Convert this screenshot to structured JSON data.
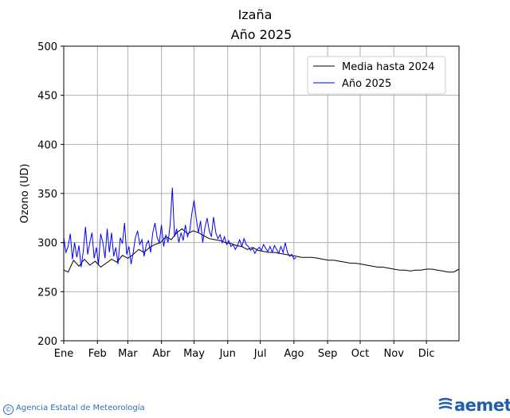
{
  "chart_data": {
    "type": "line",
    "title": "Izaña",
    "subtitle": "Año 2025",
    "ylabel": "Ozono (UD)",
    "xlabel": "",
    "ylim": [
      200,
      500
    ],
    "yticks": [
      200,
      250,
      300,
      350,
      400,
      450,
      500
    ],
    "xticks": [
      {
        "label": "Ene",
        "day": 1
      },
      {
        "label": "Feb",
        "day": 32
      },
      {
        "label": "Mar",
        "day": 60
      },
      {
        "label": "Abr",
        "day": 91
      },
      {
        "label": "May",
        "day": 121
      },
      {
        "label": "Jun",
        "day": 152
      },
      {
        "label": "Jul",
        "day": 182
      },
      {
        "label": "Ago",
        "day": 213
      },
      {
        "label": "Sep",
        "day": 244
      },
      {
        "label": "Oct",
        "day": 274
      },
      {
        "label": "Nov",
        "day": 305
      },
      {
        "label": "Dic",
        "day": 335
      }
    ],
    "xlim": [
      1,
      365
    ],
    "grid": true,
    "legend_position": "top-right",
    "series": [
      {
        "name": "Media hasta 2024",
        "color": "#000000",
        "points": [
          [
            1,
            272
          ],
          [
            5,
            270
          ],
          [
            10,
            282
          ],
          [
            15,
            276
          ],
          [
            20,
            283
          ],
          [
            25,
            277
          ],
          [
            30,
            281
          ],
          [
            35,
            275
          ],
          [
            40,
            279
          ],
          [
            45,
            283
          ],
          [
            50,
            280
          ],
          [
            55,
            287
          ],
          [
            60,
            284
          ],
          [
            65,
            288
          ],
          [
            70,
            293
          ],
          [
            75,
            290
          ],
          [
            80,
            295
          ],
          [
            85,
            298
          ],
          [
            90,
            300
          ],
          [
            95,
            306
          ],
          [
            100,
            303
          ],
          [
            105,
            310
          ],
          [
            110,
            314
          ],
          [
            115,
            309
          ],
          [
            120,
            312
          ],
          [
            125,
            310
          ],
          [
            130,
            307
          ],
          [
            135,
            304
          ],
          [
            140,
            303
          ],
          [
            145,
            302
          ],
          [
            150,
            300
          ],
          [
            155,
            299
          ],
          [
            160,
            297
          ],
          [
            165,
            296
          ],
          [
            170,
            293
          ],
          [
            175,
            295
          ],
          [
            180,
            292
          ],
          [
            185,
            291
          ],
          [
            190,
            290
          ],
          [
            195,
            290
          ],
          [
            200,
            289
          ],
          [
            205,
            288
          ],
          [
            210,
            287
          ],
          [
            215,
            286
          ],
          [
            220,
            285
          ],
          [
            225,
            285
          ],
          [
            230,
            285
          ],
          [
            235,
            284
          ],
          [
            240,
            283
          ],
          [
            245,
            282
          ],
          [
            250,
            282
          ],
          [
            255,
            281
          ],
          [
            260,
            280
          ],
          [
            265,
            279
          ],
          [
            270,
            279
          ],
          [
            275,
            278
          ],
          [
            280,
            277
          ],
          [
            285,
            276
          ],
          [
            290,
            275
          ],
          [
            295,
            275
          ],
          [
            300,
            274
          ],
          [
            305,
            273
          ],
          [
            310,
            272
          ],
          [
            315,
            272
          ],
          [
            320,
            271
          ],
          [
            325,
            272
          ],
          [
            330,
            272
          ],
          [
            335,
            273
          ],
          [
            340,
            273
          ],
          [
            345,
            272
          ],
          [
            350,
            271
          ],
          [
            355,
            270
          ],
          [
            360,
            270
          ],
          [
            365,
            273
          ]
        ]
      },
      {
        "name": "Año 2025",
        "color": "#0000ff",
        "points": [
          [
            1,
            305
          ],
          [
            3,
            290
          ],
          [
            5,
            296
          ],
          [
            7,
            309
          ],
          [
            9,
            283
          ],
          [
            11,
            300
          ],
          [
            13,
            285
          ],
          [
            15,
            297
          ],
          [
            17,
            275
          ],
          [
            19,
            291
          ],
          [
            21,
            316
          ],
          [
            23,
            288
          ],
          [
            25,
            300
          ],
          [
            27,
            310
          ],
          [
            29,
            284
          ],
          [
            31,
            295
          ],
          [
            33,
            278
          ],
          [
            35,
            309
          ],
          [
            37,
            300
          ],
          [
            39,
            284
          ],
          [
            41,
            314
          ],
          [
            43,
            290
          ],
          [
            45,
            310
          ],
          [
            47,
            286
          ],
          [
            49,
            295
          ],
          [
            51,
            278
          ],
          [
            53,
            305
          ],
          [
            55,
            299
          ],
          [
            57,
            320
          ],
          [
            59,
            288
          ],
          [
            61,
            296
          ],
          [
            63,
            278
          ],
          [
            65,
            290
          ],
          [
            67,
            305
          ],
          [
            69,
            312
          ],
          [
            71,
            298
          ],
          [
            73,
            303
          ],
          [
            75,
            286
          ],
          [
            77,
            298
          ],
          [
            79,
            302
          ],
          [
            81,
            290
          ],
          [
            83,
            310
          ],
          [
            85,
            320
          ],
          [
            87,
            305
          ],
          [
            89,
            300
          ],
          [
            91,
            318
          ],
          [
            93,
            296
          ],
          [
            95,
            308
          ],
          [
            97,
            300
          ],
          [
            99,
            318
          ],
          [
            101,
            356
          ],
          [
            103,
            306
          ],
          [
            105,
            314
          ],
          [
            107,
            300
          ],
          [
            109,
            310
          ],
          [
            111,
            302
          ],
          [
            113,
            318
          ],
          [
            115,
            306
          ],
          [
            117,
            312
          ],
          [
            119,
            330
          ],
          [
            121,
            343
          ],
          [
            123,
            325
          ],
          [
            125,
            310
          ],
          [
            127,
            322
          ],
          [
            129,
            300
          ],
          [
            131,
            315
          ],
          [
            133,
            325
          ],
          [
            135,
            312
          ],
          [
            137,
            306
          ],
          [
            139,
            326
          ],
          [
            141,
            310
          ],
          [
            143,
            304
          ],
          [
            145,
            308
          ],
          [
            147,
            300
          ],
          [
            149,
            306
          ],
          [
            151,
            298
          ],
          [
            153,
            302
          ],
          [
            155,
            296
          ],
          [
            157,
            298
          ],
          [
            159,
            293
          ],
          [
            161,
            297
          ],
          [
            163,
            303
          ],
          [
            165,
            296
          ],
          [
            167,
            304
          ],
          [
            169,
            298
          ],
          [
            171,
            296
          ],
          [
            173,
            292
          ],
          [
            175,
            294
          ],
          [
            177,
            289
          ],
          [
            179,
            293
          ],
          [
            181,
            295
          ],
          [
            183,
            292
          ],
          [
            185,
            298
          ],
          [
            187,
            294
          ],
          [
            189,
            291
          ],
          [
            191,
            296
          ],
          [
            193,
            290
          ],
          [
            195,
            297
          ],
          [
            197,
            293
          ],
          [
            199,
            289
          ],
          [
            201,
            296
          ],
          [
            203,
            290
          ],
          [
            205,
            300
          ],
          [
            207,
            290
          ],
          [
            209,
            286
          ],
          [
            211,
            288
          ],
          [
            213,
            283
          ],
          [
            215,
            285
          ]
        ]
      }
    ]
  },
  "footer": {
    "copyright": "©",
    "agency": "Agencia Estatal de Meteorología",
    "logo_text": "aemet"
  }
}
